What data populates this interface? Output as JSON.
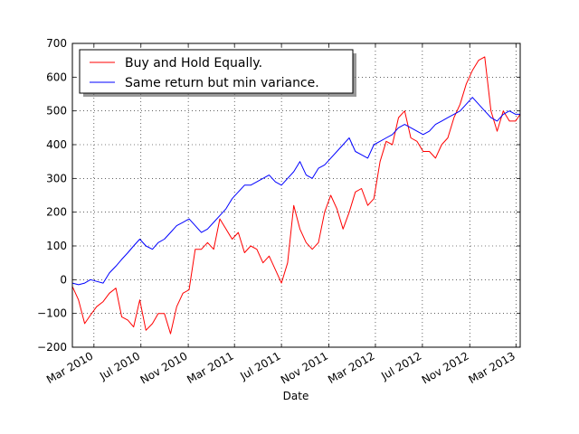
{
  "chart_data": {
    "type": "line",
    "title": "",
    "xlabel": "Date",
    "ylabel": "",
    "ylim": [
      -200,
      700
    ],
    "xlim": [
      "2010-01-04",
      "2013-03-12"
    ],
    "grid": true,
    "legend_position": "top-left",
    "y_ticks": [
      -200,
      -100,
      0,
      100,
      200,
      300,
      400,
      500,
      600,
      700
    ],
    "y_tick_labels": [
      "−200",
      "−100",
      "0",
      "100",
      "200",
      "300",
      "400",
      "500",
      "600",
      "700"
    ],
    "x_ticks": [
      "2010-03-01",
      "2010-07-01",
      "2010-11-01",
      "2011-03-01",
      "2011-07-01",
      "2011-11-01",
      "2012-03-01",
      "2012-07-01",
      "2012-11-01",
      "2013-03-01"
    ],
    "x_tick_labels": [
      "Mar 2010",
      "Jul 2010",
      "Nov 2010",
      "Mar 2011",
      "Jul 2011",
      "Nov 2011",
      "Mar 2012",
      "Jul 2012",
      "Nov 2012",
      "Mar 2013"
    ],
    "series": [
      {
        "name": "Buy and Hold Equally.",
        "color": "#ff0000",
        "x": [
          "2010-01-04",
          "2010-01-20",
          "2010-02-05",
          "2010-02-20",
          "2010-03-08",
          "2010-03-25",
          "2010-04-10",
          "2010-04-27",
          "2010-05-12",
          "2010-05-28",
          "2010-06-12",
          "2010-06-28",
          "2010-07-14",
          "2010-07-31",
          "2010-08-15",
          "2010-08-31",
          "2010-09-16",
          "2010-10-02",
          "2010-10-18",
          "2010-11-03",
          "2010-11-19",
          "2010-12-05",
          "2010-12-21",
          "2011-01-06",
          "2011-01-22",
          "2011-02-07",
          "2011-02-23",
          "2011-03-11",
          "2011-03-27",
          "2011-04-12",
          "2011-04-28",
          "2011-05-14",
          "2011-05-30",
          "2011-06-15",
          "2011-07-01",
          "2011-07-17",
          "2011-08-02",
          "2011-08-18",
          "2011-09-03",
          "2011-09-19",
          "2011-10-05",
          "2011-10-21",
          "2011-11-06",
          "2011-11-22",
          "2011-12-08",
          "2011-12-24",
          "2012-01-09",
          "2012-01-25",
          "2012-02-10",
          "2012-02-26",
          "2012-03-13",
          "2012-03-29",
          "2012-04-14",
          "2012-04-30",
          "2012-05-16",
          "2012-06-01",
          "2012-06-17",
          "2012-07-03",
          "2012-07-19",
          "2012-08-04",
          "2012-08-20",
          "2012-09-05",
          "2012-09-21",
          "2012-10-07",
          "2012-10-23",
          "2012-11-08",
          "2012-11-24",
          "2012-12-10",
          "2012-12-26",
          "2013-01-11",
          "2013-01-27",
          "2013-02-12",
          "2013-02-28",
          "2013-03-12"
        ],
        "values": [
          -20,
          -60,
          -130,
          -105,
          -80,
          -65,
          -40,
          -25,
          -110,
          -120,
          -140,
          -60,
          -150,
          -130,
          -100,
          -100,
          -160,
          -80,
          -40,
          -30,
          90,
          90,
          110,
          90,
          180,
          150,
          120,
          140,
          80,
          100,
          90,
          50,
          70,
          30,
          -10,
          50,
          220,
          150,
          110,
          90,
          110,
          200,
          250,
          210,
          150,
          200,
          260,
          270,
          220,
          240,
          350,
          410,
          400,
          480,
          500,
          420,
          410,
          380,
          380,
          360,
          400,
          420,
          480,
          520,
          580,
          620,
          650,
          660,
          500,
          440,
          500,
          470,
          470,
          490
        ]
      },
      {
        "name": "Same return but min variance.",
        "color": "#0000ff",
        "x": [
          "2010-01-04",
          "2010-01-20",
          "2010-02-05",
          "2010-02-20",
          "2010-03-08",
          "2010-03-25",
          "2010-04-10",
          "2010-04-27",
          "2010-05-12",
          "2010-05-28",
          "2010-06-12",
          "2010-06-28",
          "2010-07-14",
          "2010-07-31",
          "2010-08-15",
          "2010-08-31",
          "2010-09-16",
          "2010-10-02",
          "2010-10-18",
          "2010-11-03",
          "2010-11-19",
          "2010-12-05",
          "2010-12-21",
          "2011-01-06",
          "2011-01-22",
          "2011-02-07",
          "2011-02-23",
          "2011-03-11",
          "2011-03-27",
          "2011-04-12",
          "2011-04-28",
          "2011-05-14",
          "2011-05-30",
          "2011-06-15",
          "2011-07-01",
          "2011-07-17",
          "2011-08-02",
          "2011-08-18",
          "2011-09-03",
          "2011-09-19",
          "2011-10-05",
          "2011-10-21",
          "2011-11-06",
          "2011-11-22",
          "2011-12-08",
          "2011-12-24",
          "2012-01-09",
          "2012-01-25",
          "2012-02-10",
          "2012-02-26",
          "2012-03-13",
          "2012-03-29",
          "2012-04-14",
          "2012-04-30",
          "2012-05-16",
          "2012-06-01",
          "2012-06-17",
          "2012-07-03",
          "2012-07-19",
          "2012-08-04",
          "2012-08-20",
          "2012-09-05",
          "2012-09-21",
          "2012-10-07",
          "2012-10-23",
          "2012-11-08",
          "2012-11-24",
          "2012-12-10",
          "2012-12-26",
          "2013-01-11",
          "2013-01-27",
          "2013-02-12",
          "2013-02-28",
          "2013-03-12"
        ],
        "values": [
          -10,
          -15,
          -10,
          0,
          -5,
          -10,
          20,
          40,
          60,
          80,
          100,
          120,
          100,
          90,
          110,
          120,
          140,
          160,
          170,
          180,
          160,
          140,
          150,
          170,
          190,
          210,
          240,
          260,
          280,
          280,
          290,
          300,
          310,
          290,
          280,
          300,
          320,
          350,
          310,
          300,
          330,
          340,
          360,
          380,
          400,
          420,
          380,
          370,
          360,
          400,
          410,
          420,
          430,
          450,
          460,
          450,
          440,
          430,
          440,
          460,
          470,
          480,
          490,
          500,
          520,
          540,
          520,
          500,
          480,
          470,
          490,
          500,
          490,
          490
        ]
      }
    ]
  }
}
